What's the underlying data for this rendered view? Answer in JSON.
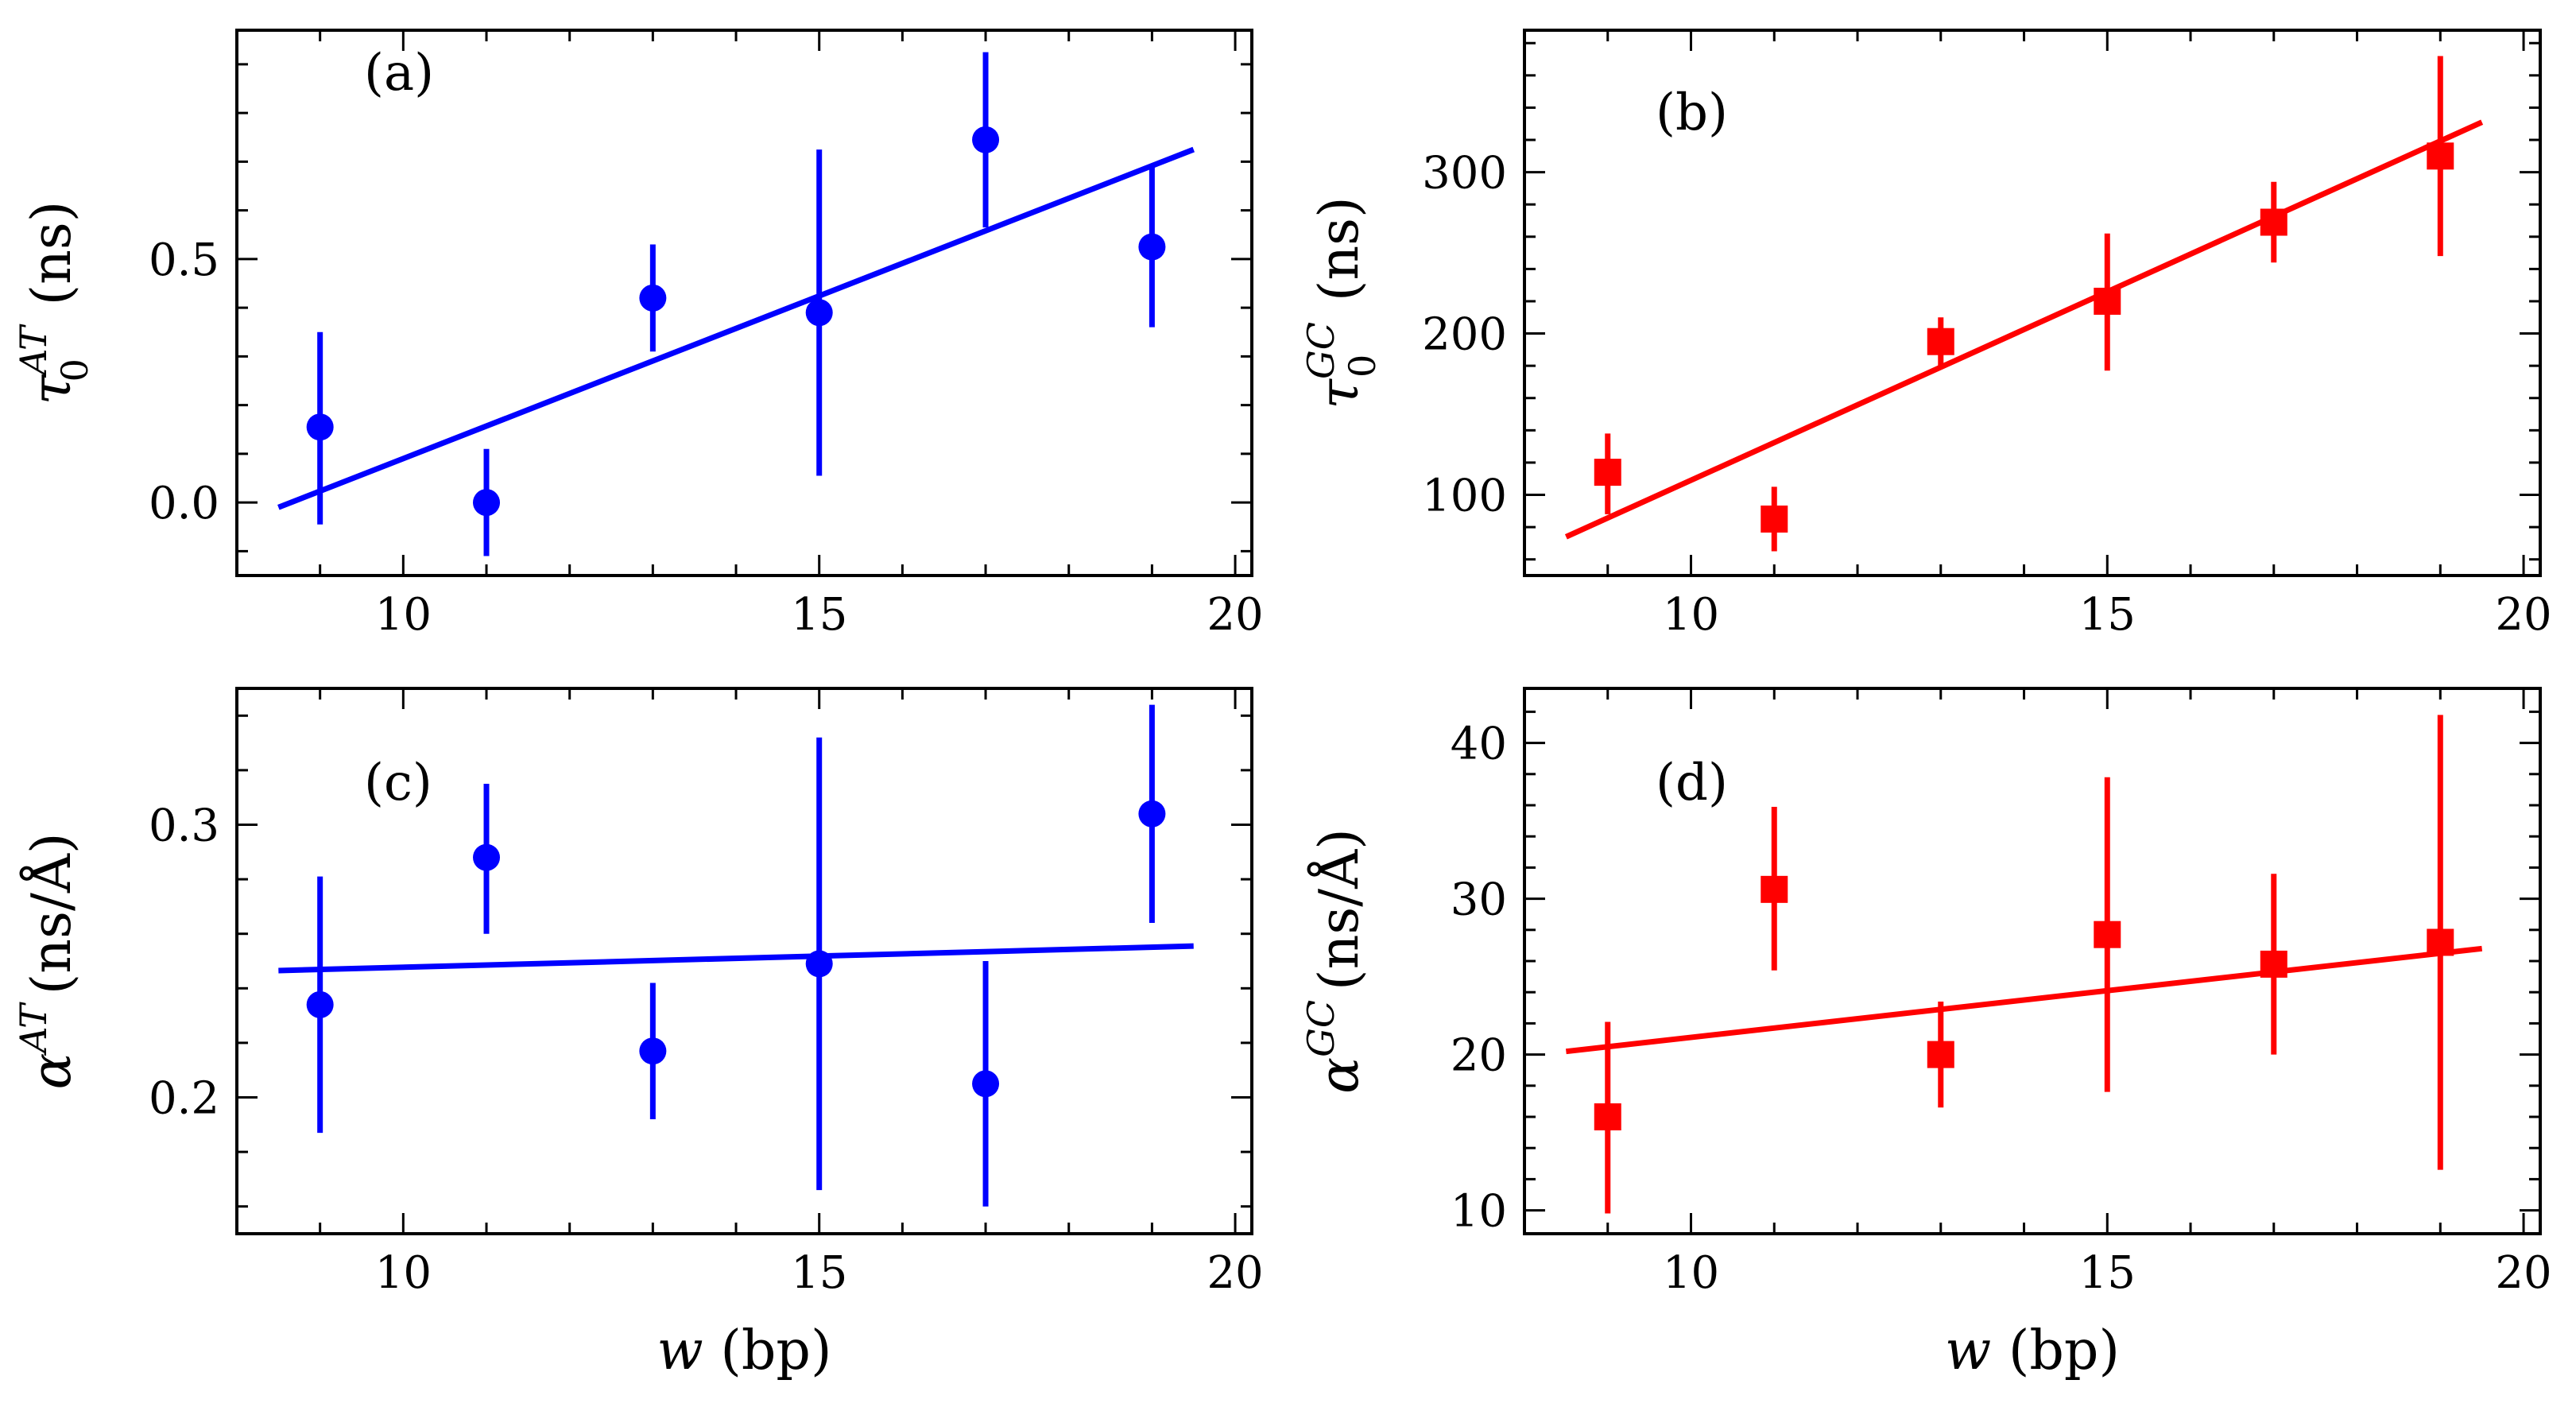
{
  "chart_data": [
    {
      "type": "scatter",
      "panel": "(a)",
      "ylabel_main": "τ",
      "ylabel_sup": "AT",
      "ylabel_sub": "0",
      "ylabel_unit": "(ns)",
      "xlabel_main": "",
      "xlabel_unit": "",
      "xlim": [
        8,
        20.2
      ],
      "ylim": [
        -0.15,
        0.97
      ],
      "xticks": [
        10,
        15,
        20
      ],
      "yticks": [
        0.0,
        0.5
      ],
      "yticks_text": [
        "0.0",
        "0.5"
      ],
      "color": "#0000ff",
      "marker": "circle",
      "series": [
        {
          "name": "data",
          "x": [
            9,
            11,
            13,
            15,
            17,
            19
          ],
          "y": [
            0.155,
            0.0,
            0.42,
            0.39,
            0.745,
            0.525
          ],
          "err_lo": [
            0.2,
            0.11,
            0.11,
            0.335,
            0.18,
            0.165
          ],
          "err_hi": [
            0.195,
            0.11,
            0.11,
            0.335,
            0.18,
            0.165
          ]
        },
        {
          "name": "fit",
          "x": [
            8.5,
            19.5
          ],
          "y": [
            -0.01,
            0.725
          ]
        }
      ]
    },
    {
      "type": "scatter",
      "panel": "(b)",
      "ylabel_main": "τ",
      "ylabel_sup": "GC",
      "ylabel_sub": "0",
      "ylabel_unit": "(ns)",
      "xlabel_main": "",
      "xlabel_unit": "",
      "xlim": [
        8,
        20.2
      ],
      "ylim": [
        50,
        388
      ],
      "xticks": [
        10,
        15,
        20
      ],
      "yticks": [
        100,
        200,
        300
      ],
      "yticks_text": [
        "100",
        "200",
        "300"
      ],
      "color": "#ff0000",
      "marker": "square",
      "series": [
        {
          "name": "data",
          "x": [
            9,
            11,
            13,
            15,
            17,
            19
          ],
          "y": [
            114,
            85,
            195,
            220,
            269,
            310
          ],
          "err_lo": [
            26,
            20,
            15,
            43,
            25,
            62
          ],
          "err_hi": [
            24,
            20,
            15,
            42,
            25,
            62
          ]
        },
        {
          "name": "fit",
          "x": [
            8.5,
            19.5
          ],
          "y": [
            74,
            331
          ]
        }
      ]
    },
    {
      "type": "scatter",
      "panel": "(c)",
      "ylabel_main": "α",
      "ylabel_sup": "AT",
      "ylabel_sub": "",
      "ylabel_unit": "(ns/Å)",
      "xlabel_main": "w",
      "xlabel_unit": "(bp)",
      "xlim": [
        8,
        20.2
      ],
      "ylim": [
        0.15,
        0.35
      ],
      "xticks": [
        10,
        15,
        20
      ],
      "yticks": [
        0.2,
        0.3
      ],
      "yticks_text": [
        "0.2",
        "0.3"
      ],
      "color": "#0000ff",
      "marker": "circle",
      "series": [
        {
          "name": "data",
          "x": [
            9,
            11,
            13,
            15,
            17,
            19
          ],
          "y": [
            0.234,
            0.288,
            0.217,
            0.249,
            0.205,
            0.304
          ],
          "err_lo": [
            0.047,
            0.028,
            0.025,
            0.083,
            0.045,
            0.04
          ],
          "err_hi": [
            0.047,
            0.027,
            0.025,
            0.083,
            0.045,
            0.04
          ]
        },
        {
          "name": "fit",
          "x": [
            8.5,
            19.5
          ],
          "y": [
            0.2465,
            0.2555
          ]
        }
      ]
    },
    {
      "type": "scatter",
      "panel": "(d)",
      "ylabel_main": "α",
      "ylabel_sup": "GC",
      "ylabel_sub": "",
      "ylabel_unit": "(ns/Å)",
      "xlabel_main": "w",
      "xlabel_unit": "(bp)",
      "xlim": [
        8,
        20.2
      ],
      "ylim": [
        8.5,
        43.5
      ],
      "xticks": [
        10,
        15,
        20
      ],
      "yticks": [
        10,
        20,
        30,
        40
      ],
      "yticks_text": [
        "10",
        "20",
        "30",
        "40"
      ],
      "color": "#ff0000",
      "marker": "square",
      "series": [
        {
          "name": "data",
          "x": [
            9,
            11,
            13,
            15,
            17,
            19
          ],
          "y": [
            16,
            30.6,
            20,
            27.7,
            25.8,
            27.2
          ],
          "err_lo": [
            6.2,
            5.2,
            3.4,
            10.1,
            5.8,
            14.6
          ],
          "err_hi": [
            6.1,
            5.3,
            3.4,
            10.1,
            5.8,
            14.6
          ]
        },
        {
          "name": "fit",
          "x": [
            8.5,
            19.5
          ],
          "y": [
            20.2,
            26.8
          ]
        }
      ]
    }
  ]
}
